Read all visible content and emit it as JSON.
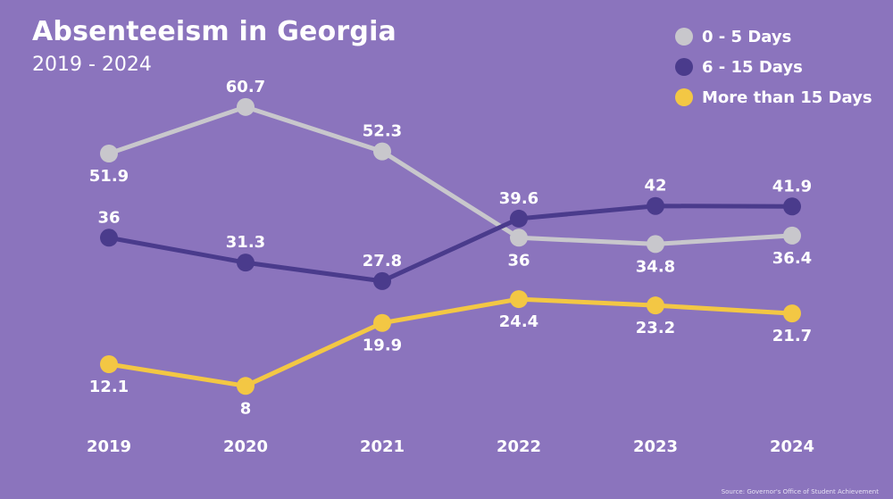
{
  "chart_data": {
    "type": "line",
    "title": "Absenteeism in Georgia",
    "subtitle": "2019 - 2024",
    "x": [
      "2019",
      "2020",
      "2021",
      "2022",
      "2023",
      "2024"
    ],
    "series": [
      {
        "name": "0 - 5 Days",
        "color": "#c8c7cc",
        "values": [
          51.9,
          60.7,
          52.3,
          36,
          34.8,
          36.4
        ],
        "value_labels": [
          "51.9",
          "60.7",
          "52.3",
          "36",
          "34.8",
          "36.4"
        ]
      },
      {
        "name": "6 - 15 Days",
        "color": "#4a3b8c",
        "values": [
          36,
          31.3,
          27.8,
          39.6,
          42,
          41.9
        ],
        "value_labels": [
          "36",
          "31.3",
          "27.8",
          "39.6",
          "42",
          "41.9"
        ]
      },
      {
        "name": "More than 15 Days",
        "color": "#f3c744",
        "values": [
          12.1,
          8,
          19.9,
          24.4,
          23.2,
          21.7
        ],
        "value_labels": [
          "12.1",
          "8",
          "19.9",
          "24.4",
          "23.2",
          "21.7"
        ]
      }
    ],
    "legend_position": "top-right",
    "grid": false,
    "background": "#8b74bd",
    "source": "Source: Governor's Office of Student Achievement"
  }
}
